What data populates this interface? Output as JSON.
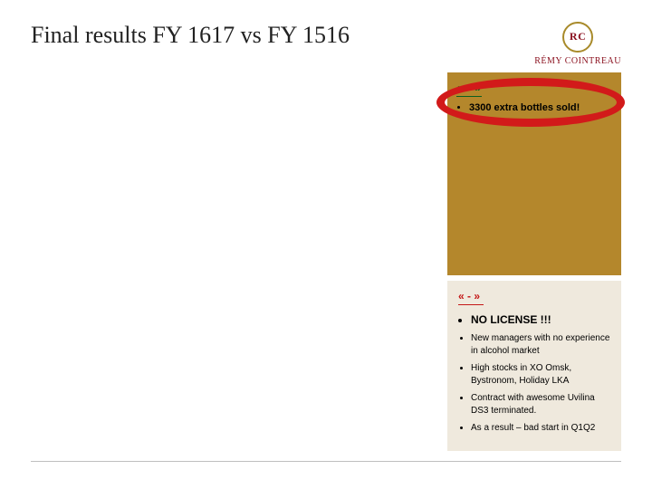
{
  "title": "Final results FY 1617 vs FY 1516",
  "logo": {
    "monogram": "RC",
    "brand": "RÉMY COINTREAU"
  },
  "plus_panel": {
    "header": "« + »",
    "background_color": "#b4872c",
    "header_color": "#0a5f1f",
    "items": [
      "3300 extra bottles sold!"
    ],
    "highlight_ellipse_color": "#d21a1a"
  },
  "minus_panel": {
    "header": "« - »",
    "background_color": "#efe9dd",
    "header_color": "#c41717",
    "items": [
      "NO LICENSE !!!",
      "New managers with no experience in alcohol market",
      "High stocks in XO Omsk, Bystronom, Holiday LKA",
      "Contract with awesome Uvilina DS3 terminated.",
      "As a result – bad start in Q1Q2"
    ],
    "strong_first": true
  },
  "colors": {
    "title": "#222222",
    "brand_red": "#8a0f1d",
    "brand_gold": "#a88a2a",
    "footer_rule": "#bfbfbf",
    "page_bg": "#ffffff"
  },
  "layout": {
    "slide_w": 720,
    "slide_h": 540,
    "right_col_w": 192,
    "plus_panel_h": 224
  },
  "typography": {
    "title_family": "Georgia",
    "title_size_pt": 20,
    "body_family": "Arial",
    "plus_header_size_pt": 9,
    "minus_header_size_pt": 9,
    "bullet_size_pt": 8,
    "strong_bullet_size_pt": 9
  }
}
